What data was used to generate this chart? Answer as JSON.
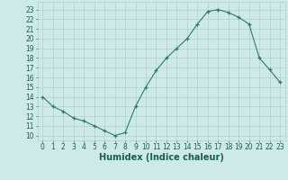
{
  "x": [
    0,
    1,
    2,
    3,
    4,
    5,
    6,
    7,
    8,
    9,
    10,
    11,
    12,
    13,
    14,
    15,
    16,
    17,
    18,
    19,
    20,
    21,
    22,
    23
  ],
  "y": [
    14,
    13,
    12.5,
    11.8,
    11.5,
    11.0,
    10.5,
    10.0,
    10.3,
    13.0,
    15.0,
    16.7,
    18.0,
    19.0,
    20.0,
    21.5,
    22.8,
    23.0,
    22.7,
    22.2,
    21.5,
    18.0,
    16.8,
    15.5
  ],
  "line_color": "#2d7a6e",
  "marker": "+",
  "bg_color": "#ceeae6",
  "grid_color": "#b0cfcc",
  "xlabel": "Humidex (Indice chaleur)",
  "xlim": [
    -0.5,
    23.5
  ],
  "ylim": [
    9.5,
    23.8
  ],
  "yticks": [
    10,
    11,
    12,
    13,
    14,
    15,
    16,
    17,
    18,
    19,
    20,
    21,
    22,
    23
  ],
  "xticks": [
    0,
    1,
    2,
    3,
    4,
    5,
    6,
    7,
    8,
    9,
    10,
    11,
    12,
    13,
    14,
    15,
    16,
    17,
    18,
    19,
    20,
    21,
    22,
    23
  ],
  "tick_fontsize": 5.5,
  "xlabel_fontsize": 7,
  "label_color": "#1a5c55",
  "linewidth": 0.8,
  "markersize": 3.5,
  "markeredgewidth": 0.9
}
